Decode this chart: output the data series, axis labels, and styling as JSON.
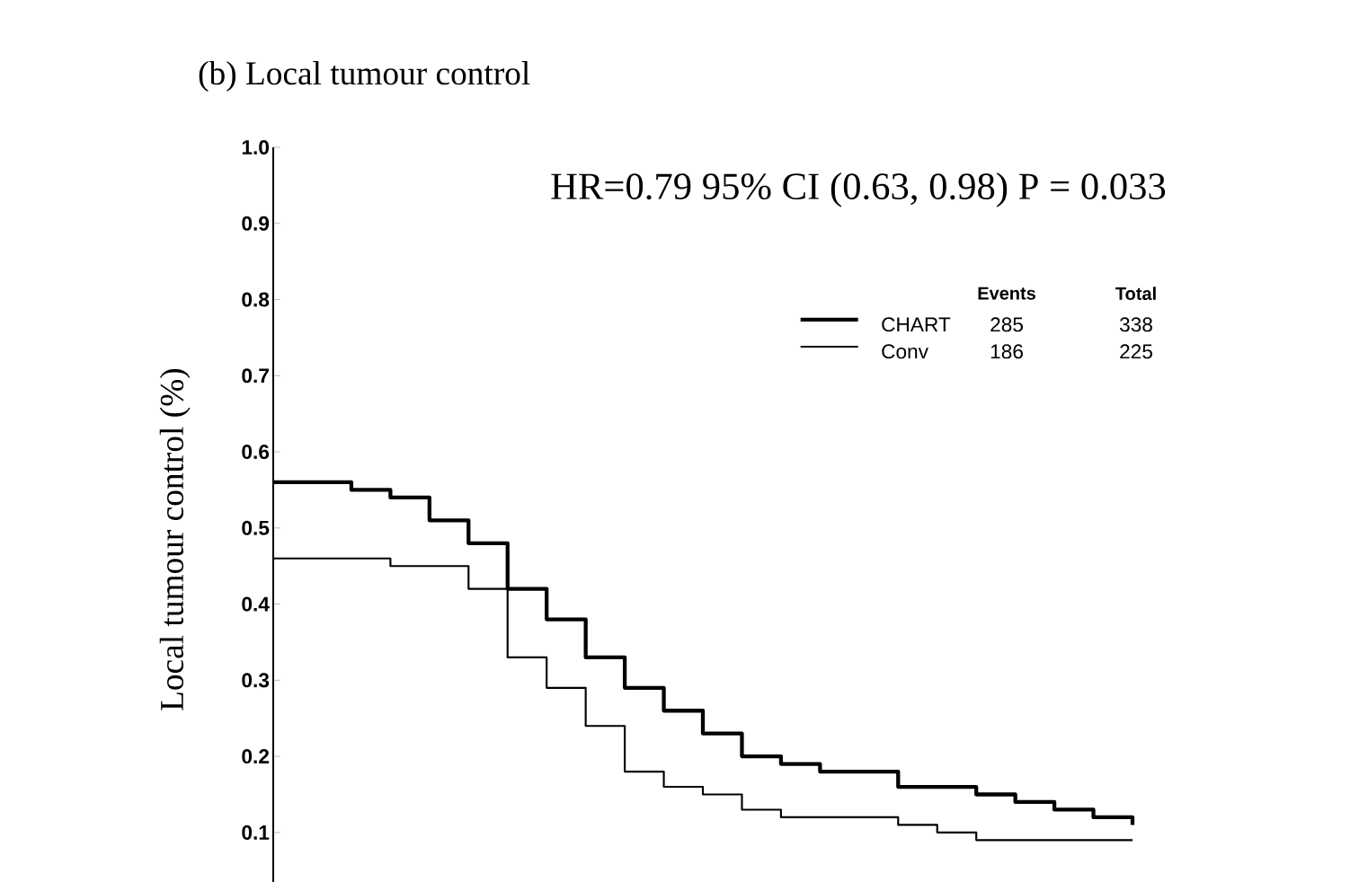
{
  "chart_data": {
    "type": "step",
    "title": "(b)  Local tumour control",
    "ylabel": "Local tumour control (%)",
    "annotations": [
      "HR=0.79   95% CI (0.63, 0.98)   P = 0.033",
      "Events",
      "Total",
      "285",
      "338",
      "186",
      "225"
    ],
    "categories": [
      null,
      null,
      null,
      null,
      null,
      null,
      null,
      null,
      null,
      null,
      null,
      null,
      null,
      null,
      null,
      null,
      null,
      null,
      null,
      null,
      null,
      null,
      null
    ],
    "series": [
      {
        "name": "CHART",
        "color": "#000000",
        "values": [
          0.56,
          0.56,
          0.55,
          0.54,
          0.51,
          0.48,
          0.42,
          0.38,
          0.33,
          0.29,
          0.26,
          0.23,
          0.2,
          0.19,
          0.18,
          0.18,
          0.16,
          0.16,
          0.15,
          0.14,
          0.13,
          0.12,
          0.11
        ]
      },
      {
        "name": "Conv",
        "color": "#000000",
        "values": [
          0.46,
          0.46,
          0.46,
          0.45,
          0.45,
          0.42,
          0.33,
          0.29,
          0.24,
          0.18,
          0.16,
          0.15,
          0.13,
          0.12,
          0.12,
          0.12,
          0.11,
          0.1,
          0.09,
          0.09,
          0.09,
          0.09,
          0.09
        ]
      }
    ],
    "ylim": [
      0.035,
      1.0
    ],
    "yticks": [
      0.1,
      0.2,
      0.3,
      0.4,
      0.5,
      0.6,
      0.7,
      0.8,
      0.9,
      {
        "value": 1.0,
        "label": "1.0"
      }
    ],
    "tick_labels": "y",
    "legend": "top right",
    "marker": "none",
    "line_style": "solid"
  }
}
